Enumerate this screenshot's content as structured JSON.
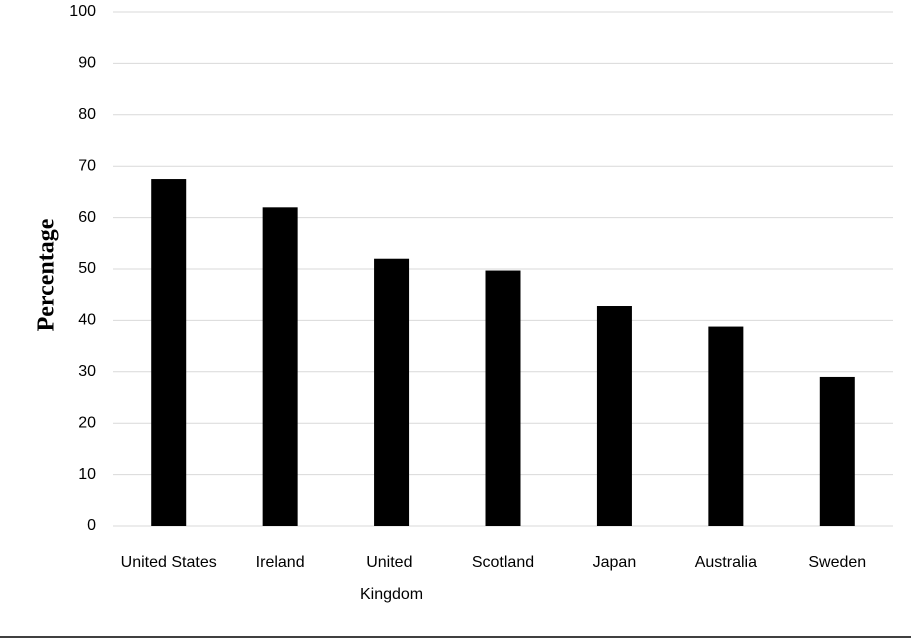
{
  "chart_data": {
    "type": "bar",
    "y_label": "Percentage",
    "categories": [
      "United States",
      "Ireland",
      "United Kingdom",
      "Scotland",
      "Japan",
      "Australia",
      "Sweden"
    ],
    "values": [
      67.5,
      62,
      52,
      49.7,
      42.8,
      38.8,
      29
    ],
    "color": "#000000",
    "ylim": [
      0,
      100
    ],
    "yticks": [
      0,
      10,
      20,
      30,
      40,
      50,
      60,
      70,
      80,
      90,
      100
    ],
    "grid": true
  }
}
